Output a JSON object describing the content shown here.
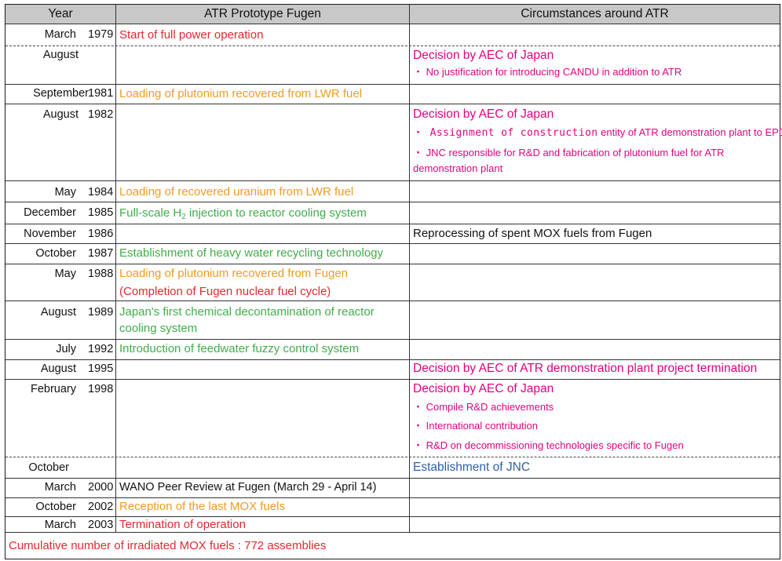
{
  "headers": {
    "year": "Year",
    "fugen": "ATR Prototype Fugen",
    "circumstances": "Circumstances around ATR"
  },
  "colors": {
    "red": "#e8272e",
    "orange": "#f39a1e",
    "green": "#3fae49",
    "pink": "#e6007e",
    "blue": "#2e5fa8",
    "header_bg": "#c8c8c8"
  },
  "rows": {
    "r1979": {
      "month": "March",
      "year": "1979",
      "event": "Start of full power operation"
    },
    "r1979b": {
      "month": "August",
      "circ_title": "Decision by AEC of Japan",
      "circ_bullet1": "・ No justification for introducing CANDU in addition to ATR"
    },
    "r1981": {
      "month": "September",
      "year": "1981",
      "event": "Loading of plutonium recovered from LWR fuel"
    },
    "r1982": {
      "month": "August",
      "year": "1982",
      "circ_title": "Decision by AEC of Japan",
      "circ_bullet1_mono": "・ Assignment of construction",
      "circ_bullet1_rest": " entity of ATR demonstration plant to EPDC",
      "circ_bullet2_line1": "・ JNC responsible for R&D and fabrication of plutonium fuel for ATR",
      "circ_bullet2_line2": "demonstration plant"
    },
    "r1984": {
      "month": "May",
      "year": "1984",
      "event": "Loading of recovered uranium from LWR fuel"
    },
    "r1985": {
      "month": "December",
      "year": "1985",
      "event_pre": "Full-scale H",
      "event_sub": "2",
      "event_post": " injection to reactor cooling system"
    },
    "r1986": {
      "month": "November",
      "year": "1986",
      "circ": "Reprocessing of spent MOX fuels from Fugen"
    },
    "r1987": {
      "month": "October",
      "year": "1987",
      "event": "Establishment of heavy water recycling technology"
    },
    "r1988": {
      "month": "May",
      "year": "1988",
      "event": "Loading of plutonium recovered from Fugen",
      "event2": "(Completion of Fugen nuclear fuel cycle)"
    },
    "r1989": {
      "month": "August",
      "year": "1989",
      "event_line1": "Japan's first chemical decontamination of reactor",
      "event_line2": "cooling system"
    },
    "r1992": {
      "month": "July",
      "year": "1992",
      "event": "Introduction of feedwater fuzzy control system"
    },
    "r1995": {
      "month": "August",
      "year": "1995",
      "circ": "Decision by AEC of ATR demonstration plant project termination"
    },
    "r1998": {
      "month": "February",
      "year": "1998",
      "circ_title": "Decision by AEC of Japan",
      "circ_bullet1": "・ Compile R&D achievements",
      "circ_bullet2": "・ International contribution",
      "circ_bullet3": "・ R&D on decommissioning technologies specific to Fugen"
    },
    "r1998b": {
      "month": "October",
      "circ": "Establishment of JNC"
    },
    "r2000": {
      "month": "March",
      "year": "2000",
      "event": "WANO Peer Review at Fugen (March 29 - April 14)"
    },
    "r2002": {
      "month": "October",
      "year": "2002",
      "event": "Reception of the last MOX fuels"
    },
    "r2003": {
      "month": "March",
      "year": "2003",
      "event": "Termination of operation"
    }
  },
  "footer": "Cumulative number of irradiated MOX fuels : 772 assemblies"
}
